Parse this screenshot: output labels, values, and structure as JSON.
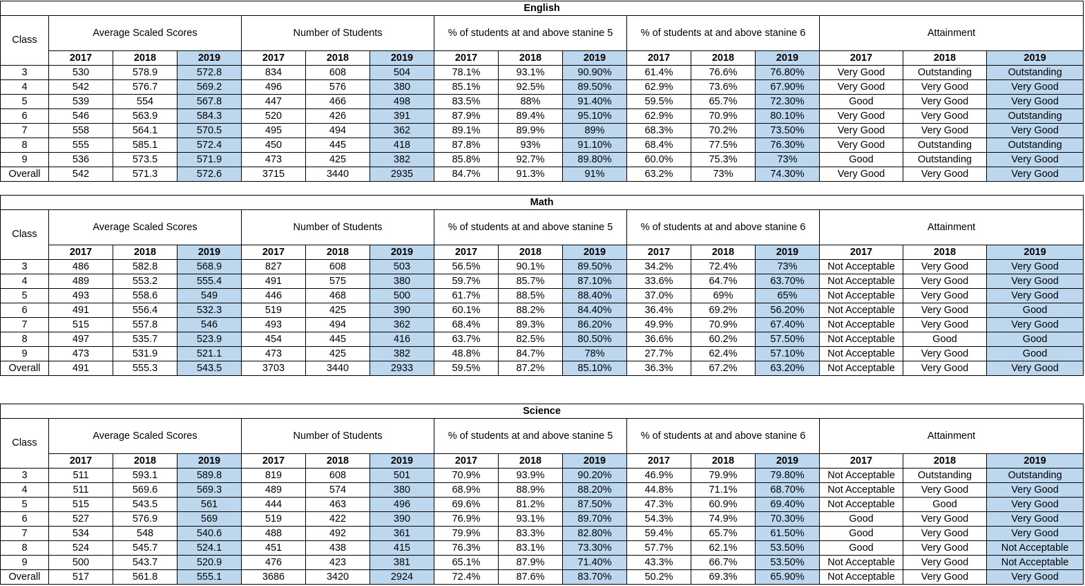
{
  "tables": [
    {
      "subject": "English",
      "class_header": "Class",
      "groups": [
        "Average Scaled Scores",
        "Number of Students",
        "% of students at and above stanine 5",
        "% of students at and above stanine 6",
        "Attainment"
      ],
      "years": [
        "2017",
        "2018",
        "2019"
      ],
      "rows": [
        [
          "3",
          "530",
          "578.9",
          "572.8",
          "834",
          "608",
          "504",
          "78.1%",
          "93.1%",
          "90.90%",
          "61.4%",
          "76.6%",
          "76.80%",
          "Very Good",
          "Outstanding",
          "Outstanding"
        ],
        [
          "4",
          "542",
          "576.7",
          "569.2",
          "496",
          "576",
          "380",
          "85.1%",
          "92.5%",
          "89.50%",
          "62.9%",
          "73.6%",
          "67.90%",
          "Very Good",
          "Very Good",
          "Very Good"
        ],
        [
          "5",
          "539",
          "554",
          "567.8",
          "447",
          "466",
          "498",
          "83.5%",
          "88%",
          "91.40%",
          "59.5%",
          "65.7%",
          "72.30%",
          "Good",
          "Very Good",
          "Very Good"
        ],
        [
          "6",
          "546",
          "563.9",
          "584.3",
          "520",
          "426",
          "391",
          "87.9%",
          "89.4%",
          "95.10%",
          "62.9%",
          "70.9%",
          "80.10%",
          "Very Good",
          "Very Good",
          "Outstanding"
        ],
        [
          "7",
          "558",
          "564.1",
          "570.5",
          "495",
          "494",
          "362",
          "89.1%",
          "89.9%",
          "89%",
          "68.3%",
          "70.2%",
          "73.50%",
          "Very Good",
          "Very Good",
          "Very Good"
        ],
        [
          "8",
          "555",
          "585.1",
          "572.4",
          "450",
          "445",
          "418",
          "87.8%",
          "93%",
          "91.10%",
          "68.4%",
          "77.5%",
          "76.30%",
          "Very Good",
          "Outstanding",
          "Outstanding"
        ],
        [
          "9",
          "536",
          "573.5",
          "571.9",
          "473",
          "425",
          "382",
          "85.8%",
          "92.7%",
          "89.80%",
          "60.0%",
          "75.3%",
          "73%",
          "Good",
          "Outstanding",
          "Very Good"
        ],
        [
          "Overall",
          "542",
          "571.3",
          "572.6",
          "3715",
          "3440",
          "2935",
          "84.7%",
          "91.3%",
          "91%",
          "63.2%",
          "73%",
          "74.30%",
          "Very Good",
          "Very Good",
          "Very Good"
        ]
      ]
    },
    {
      "subject": "Math",
      "class_header": "Class",
      "groups": [
        "Average Scaled Scores",
        "Number of Students",
        "% of students at and above stanine 5",
        "% of students at and above stanine 6",
        "Attainment"
      ],
      "years": [
        "2017",
        "2018",
        "2019"
      ],
      "rows": [
        [
          "3",
          "486",
          "582.8",
          "568.9",
          "827",
          "608",
          "503",
          "56.5%",
          "90.1%",
          "89.50%",
          "34.2%",
          "72.4%",
          "73%",
          "Not Acceptable",
          "Very Good",
          "Very Good"
        ],
        [
          "4",
          "489",
          "553.2",
          "555.4",
          "491",
          "575",
          "380",
          "59.7%",
          "85.7%",
          "87.10%",
          "33.6%",
          "64.7%",
          "63.70%",
          "Not Acceptable",
          "Very Good",
          "Very Good"
        ],
        [
          "5",
          "493",
          "558.6",
          "549",
          "446",
          "468",
          "500",
          "61.7%",
          "88.5%",
          "88.40%",
          "37.0%",
          "69%",
          "65%",
          "Not Acceptable",
          "Very Good",
          "Very Good"
        ],
        [
          "6",
          "491",
          "556.4",
          "532.3",
          "519",
          "425",
          "390",
          "60.1%",
          "88.2%",
          "84.40%",
          "36.4%",
          "69.2%",
          "56.20%",
          "Not Acceptable",
          "Very Good",
          "Good"
        ],
        [
          "7",
          "515",
          "557.8",
          "546",
          "493",
          "494",
          "362",
          "68.4%",
          "89.3%",
          "86.20%",
          "49.9%",
          "70.9%",
          "67.40%",
          "Not Acceptable",
          "Very Good",
          "Very Good"
        ],
        [
          "8",
          "497",
          "535.7",
          "523.9",
          "454",
          "445",
          "416",
          "63.7%",
          "82.5%",
          "80.50%",
          "36.6%",
          "60.2%",
          "57.50%",
          "Not Acceptable",
          "Good",
          "Good"
        ],
        [
          "9",
          "473",
          "531.9",
          "521.1",
          "473",
          "425",
          "382",
          "48.8%",
          "84.7%",
          "78%",
          "27.7%",
          "62.4%",
          "57.10%",
          "Not Acceptable",
          "Very Good",
          "Good"
        ],
        [
          "Overall",
          "491",
          "555.3",
          "543.5",
          "3703",
          "3440",
          "2933",
          "59.5%",
          "87.2%",
          "85.10%",
          "36.3%",
          "67.2%",
          "63.20%",
          "Not Acceptable",
          "Very Good",
          "Very Good"
        ]
      ]
    },
    {
      "subject": "Science",
      "class_header": "Class",
      "groups": [
        "Average Scaled Scores",
        "Number of Students",
        "% of students at and above stanine 5",
        "% of students at and above stanine 6",
        "Attainment"
      ],
      "years": [
        "2017",
        "2018",
        "2019"
      ],
      "rows": [
        [
          "3",
          "511",
          "593.1",
          "589.8",
          "819",
          "608",
          "501",
          "70.9%",
          "93.9%",
          "90.20%",
          "46.9%",
          "79.9%",
          "79.80%",
          "Not Acceptable",
          "Outstanding",
          "Outstanding"
        ],
        [
          "4",
          "511",
          "569.6",
          "569.3",
          "489",
          "574",
          "380",
          "68.9%",
          "88.9%",
          "88.20%",
          "44.8%",
          "71.1%",
          "68.70%",
          "Not Acceptable",
          "Very Good",
          "Very Good"
        ],
        [
          "5",
          "515",
          "543.5",
          "561",
          "444",
          "463",
          "496",
          "69.6%",
          "81.2%",
          "87.50%",
          "47.3%",
          "60.9%",
          "69.40%",
          "Not Acceptable",
          "Good",
          "Very Good"
        ],
        [
          "6",
          "527",
          "576.9",
          "569",
          "519",
          "422",
          "390",
          "76.9%",
          "93.1%",
          "89.70%",
          "54.3%",
          "74.9%",
          "70.30%",
          "Good",
          "Very Good",
          "Very Good"
        ],
        [
          "7",
          "534",
          "548",
          "540.6",
          "488",
          "492",
          "361",
          "79.9%",
          "83.3%",
          "82.80%",
          "59.4%",
          "65.7%",
          "61.50%",
          "Good",
          "Very Good",
          "Very Good"
        ],
        [
          "8",
          "524",
          "545.7",
          "524.1",
          "451",
          "438",
          "415",
          "76.3%",
          "83.1%",
          "73.30%",
          "57.7%",
          "62.1%",
          "53.50%",
          "Good",
          "Very Good",
          "Not Acceptable"
        ],
        [
          "9",
          "500",
          "543.7",
          "520.9",
          "476",
          "423",
          "381",
          "65.1%",
          "87.9%",
          "71.40%",
          "43.3%",
          "66.7%",
          "53.50%",
          "Not Acceptable",
          "Very Good",
          "Not Acceptable"
        ],
        [
          "Overall",
          "517",
          "561.8",
          "555.1",
          "3686",
          "3420",
          "2924",
          "72.4%",
          "87.6%",
          "83.70%",
          "50.2%",
          "69.3%",
          "65.90%",
          "Not Acceptable",
          "Very Good",
          "Very Good"
        ]
      ]
    }
  ],
  "colors": {
    "highlight": "#bdd7ee",
    "border": "#000000",
    "background": "#ffffff"
  }
}
